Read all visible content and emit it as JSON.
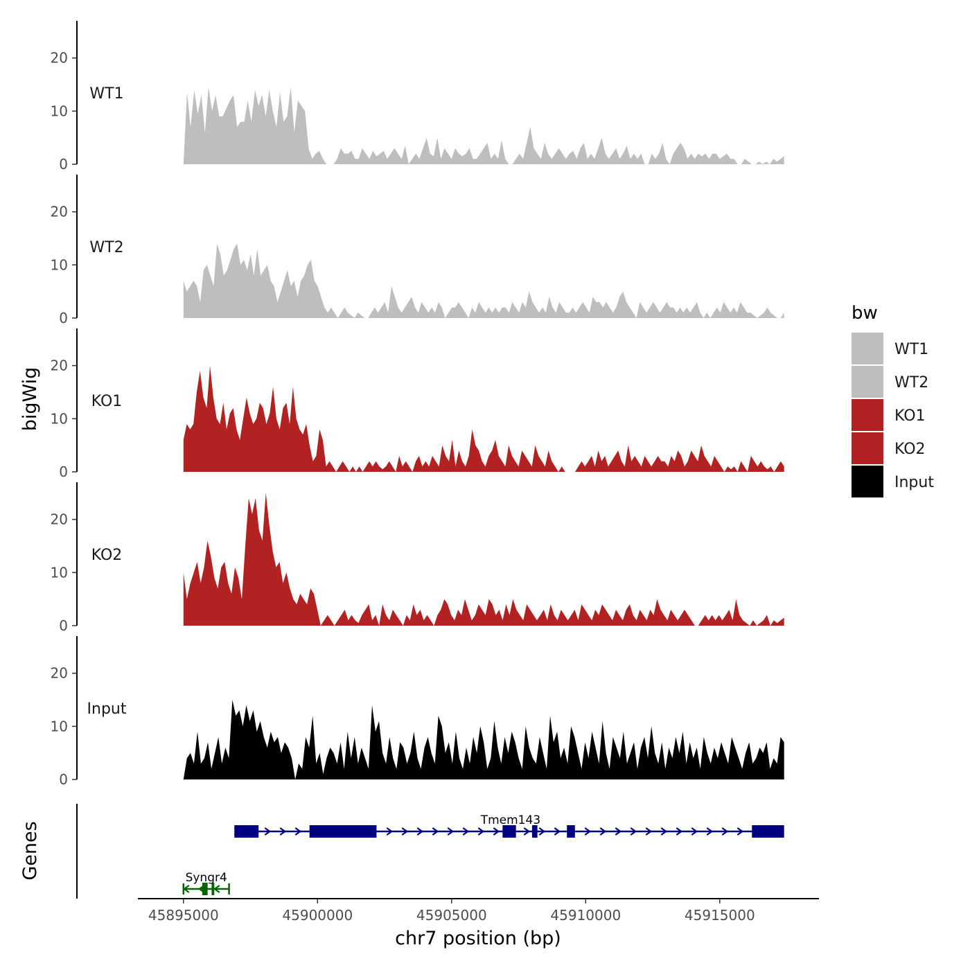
{
  "chart_data": {
    "type": "area",
    "title": "",
    "xlabel": "chr7 position (bp)",
    "ylabel": "bigWig",
    "genes_panel_label": "Genes",
    "xlim": [
      45893300,
      45918700
    ],
    "x_ticks": [
      45895000,
      45900000,
      45905000,
      45910000,
      45915000
    ],
    "x_tick_labels": [
      "45895000",
      "45900000",
      "45905000",
      "45910000",
      "45915000"
    ],
    "ylim": [
      0,
      27
    ],
    "y_ticks": [
      0,
      10,
      20
    ],
    "y_tick_labels": [
      "0",
      "10",
      "20"
    ],
    "data_x_range": [
      45895000,
      45917400
    ],
    "legend": {
      "title": "bw",
      "position": "right",
      "entries": [
        {
          "label": "WT1",
          "color": "#bebebe"
        },
        {
          "label": "WT2",
          "color": "#bebebe"
        },
        {
          "label": "KO1",
          "color": "#b22222"
        },
        {
          "label": "KO2",
          "color": "#b22222"
        },
        {
          "label": "Input",
          "color": "#000000"
        }
      ]
    },
    "series": [
      {
        "name": "WT1",
        "color": "#bebebe",
        "values": [
          0,
          13.5,
          7,
          14,
          9.5,
          13,
          6,
          14.5,
          10,
          13,
          9,
          9,
          10.5,
          12,
          13,
          7,
          8,
          8,
          12,
          8,
          14,
          11,
          13,
          9,
          14,
          10,
          7,
          13.5,
          8,
          9,
          14.5,
          6,
          12,
          11,
          10,
          3,
          1,
          2,
          2.5,
          1,
          0,
          0,
          0,
          1,
          3,
          2,
          2,
          2.5,
          1,
          1,
          3,
          2,
          1,
          2.5,
          1.5,
          2,
          2.5,
          1,
          2,
          3,
          2,
          1,
          3.5,
          0,
          1,
          2,
          1,
          3,
          5,
          2,
          1.5,
          5,
          1,
          3,
          2,
          1,
          3,
          2,
          1.5,
          2,
          3,
          1,
          1,
          2,
          3,
          4,
          1,
          2,
          1,
          4.5,
          1,
          0,
          0,
          1,
          2,
          1,
          4,
          7,
          3,
          2,
          1,
          4,
          2,
          1,
          2,
          3,
          2,
          1,
          2,
          2.5,
          1,
          3,
          4,
          1,
          2,
          1,
          3,
          5,
          2,
          1,
          2,
          3,
          1,
          2,
          3.5,
          1,
          2,
          1,
          2,
          0,
          0,
          2,
          1,
          2,
          4,
          1,
          0,
          2,
          3,
          4,
          3,
          1,
          2,
          1,
          2,
          1.5,
          2,
          1,
          2,
          2,
          1,
          1.5,
          2,
          1,
          1,
          0,
          0,
          1,
          0.5,
          0,
          0,
          0.5,
          0,
          0.5,
          0,
          1,
          0.5,
          1,
          1.5
        ]
      },
      {
        "name": "WT2",
        "color": "#bebebe",
        "values": [
          7,
          5,
          6,
          7,
          6,
          3,
          9,
          10,
          8,
          6,
          14,
          12,
          8,
          9,
          11,
          13,
          14,
          10,
          11,
          9,
          12,
          8,
          13,
          8,
          9,
          10,
          7,
          6,
          3,
          5,
          7,
          9,
          6,
          7,
          4,
          7,
          8,
          10,
          11,
          7,
          6,
          4,
          2,
          1,
          2,
          1,
          0,
          1,
          2,
          1,
          0.5,
          0,
          1,
          0.5,
          0,
          0,
          1,
          2,
          1,
          2,
          3,
          1,
          6,
          4,
          2,
          1,
          2,
          3,
          4,
          2,
          1,
          3,
          2,
          1,
          2,
          1,
          3,
          2,
          0,
          1,
          2,
          2,
          3,
          2,
          1,
          0,
          2,
          1,
          3,
          2,
          1,
          2,
          1,
          2,
          1,
          2,
          2,
          1,
          3,
          2,
          1,
          3,
          2,
          5,
          3,
          2,
          1,
          2,
          1,
          4,
          2,
          1,
          3,
          2,
          1,
          1,
          2,
          1,
          2,
          3,
          2,
          1,
          4,
          3,
          3,
          2,
          3,
          2,
          1,
          2,
          4,
          5,
          3,
          2,
          1,
          0,
          3,
          2,
          1,
          2,
          3,
          2,
          1,
          2,
          3,
          2,
          2,
          1,
          2,
          1,
          2,
          1,
          2,
          3,
          1,
          0,
          1,
          0,
          1,
          2,
          1,
          3,
          2,
          1,
          2,
          1,
          3,
          2,
          1,
          1,
          0.5,
          0,
          0.5,
          1,
          2,
          1,
          0.5,
          0,
          0,
          1
        ]
      },
      {
        "name": "KO1",
        "color": "#b22222",
        "values": [
          6,
          9,
          8,
          9,
          15,
          19,
          14,
          12,
          20,
          14,
          10,
          9,
          13,
          8,
          11,
          12,
          8,
          6,
          10,
          14,
          11,
          9,
          10,
          13,
          12,
          9,
          11,
          16,
          10,
          8,
          12,
          13,
          9,
          16,
          10,
          8,
          7,
          9,
          5,
          2,
          3,
          8,
          6,
          1,
          2,
          1,
          0,
          1,
          2,
          1,
          0,
          1,
          0,
          1,
          0,
          1,
          2,
          1,
          2,
          1,
          0.5,
          1,
          2,
          1,
          0,
          3,
          1,
          2,
          1,
          0,
          2,
          3,
          1,
          2,
          1,
          3,
          2,
          1,
          5,
          3,
          2,
          6,
          1,
          4,
          2,
          1,
          3,
          8,
          5,
          4,
          2,
          1,
          3,
          4,
          6,
          3,
          2,
          1,
          5,
          3,
          2,
          1,
          4,
          3,
          2,
          1,
          5,
          3,
          2,
          1,
          4,
          2,
          1,
          0,
          1,
          0,
          0,
          0,
          0,
          1,
          2,
          1,
          2,
          3,
          1,
          4,
          2,
          3,
          1,
          2,
          3,
          4,
          2,
          1,
          5,
          2,
          3,
          2,
          1,
          3,
          2,
          1,
          2,
          3,
          2,
          2,
          1,
          3,
          2,
          4,
          3,
          1,
          2,
          4,
          3,
          2,
          5,
          3,
          2,
          1,
          3,
          2,
          1,
          0,
          1,
          0.5,
          1,
          0,
          2,
          1,
          0,
          3,
          2,
          1,
          2,
          1,
          0.5,
          1,
          0,
          1,
          2,
          1
        ]
      },
      {
        "name": "KO2",
        "color": "#b22222",
        "values": [
          10,
          5,
          8,
          10,
          12,
          8,
          11,
          16,
          13,
          9,
          7,
          11,
          12,
          8,
          6,
          11,
          9,
          5,
          15,
          24,
          21,
          24,
          18,
          16,
          25,
          19,
          14,
          11,
          12,
          8,
          10,
          7,
          5,
          4,
          6,
          5,
          4,
          7,
          6,
          3,
          0,
          1,
          2,
          1,
          0,
          1,
          2,
          3,
          1,
          2,
          1,
          0.5,
          2,
          3,
          4,
          1,
          2,
          0,
          4,
          2,
          1,
          3,
          2,
          1,
          0,
          2,
          1,
          4,
          2,
          3,
          1,
          2,
          1,
          0,
          2,
          3,
          5,
          4,
          2,
          1,
          3,
          2,
          5,
          3,
          1,
          2,
          4,
          3,
          2,
          5,
          4,
          2,
          3,
          1,
          4,
          2,
          5,
          3,
          2,
          1,
          4,
          3,
          2,
          1,
          2,
          3,
          1,
          4,
          2,
          1,
          3,
          2,
          1,
          2,
          3,
          1,
          4,
          3,
          2,
          1,
          3,
          2,
          4,
          3,
          2,
          1,
          3,
          2,
          1,
          3,
          4,
          2,
          1,
          3,
          2,
          1,
          3,
          2,
          5,
          3,
          2,
          1,
          3,
          2,
          1,
          2,
          3,
          2,
          1,
          0,
          0,
          1,
          2,
          1,
          2,
          1,
          2,
          1,
          2,
          3,
          1,
          5,
          2,
          1,
          0.5,
          0,
          1,
          0,
          0.5,
          1,
          2,
          0,
          1,
          0.5,
          1,
          1.5
        ]
      },
      {
        "name": "Input",
        "color": "#000000",
        "values": [
          0,
          4,
          5,
          3,
          9,
          3,
          4,
          7,
          2,
          5,
          8,
          3,
          6,
          4,
          15,
          12,
          13,
          10,
          14,
          11,
          13,
          9,
          11,
          8,
          6,
          9,
          7,
          8,
          5,
          7,
          6,
          4,
          0,
          3,
          2,
          8,
          6,
          12,
          3,
          5,
          1,
          4,
          6,
          5,
          3,
          7,
          2,
          9,
          4,
          8,
          3,
          6,
          4,
          2,
          14,
          9,
          11,
          5,
          3,
          8,
          4,
          2,
          7,
          6,
          3,
          5,
          9,
          4,
          2,
          6,
          8,
          5,
          3,
          12,
          10,
          5,
          7,
          3,
          9,
          4,
          2,
          6,
          3,
          8,
          5,
          10,
          7,
          2,
          4,
          11,
          6,
          3,
          8,
          5,
          9,
          7,
          4,
          2,
          10,
          6,
          4,
          3,
          8,
          5,
          2,
          12,
          7,
          9,
          4,
          6,
          3,
          10,
          8,
          5,
          2,
          7,
          4,
          9,
          6,
          3,
          11,
          5,
          2,
          8,
          6,
          4,
          9,
          3,
          5,
          7,
          2,
          6,
          8,
          4,
          10,
          5,
          3,
          7,
          2,
          6,
          4,
          8,
          5,
          9,
          3,
          7,
          4,
          6,
          2,
          8,
          5,
          3,
          6,
          4,
          7,
          5,
          3,
          8,
          6,
          4,
          2,
          5,
          7,
          3,
          4,
          6,
          5,
          7,
          2,
          4,
          3,
          8,
          7
        ]
      }
    ],
    "genes": [
      {
        "name": "Tmem143",
        "strand": "+",
        "color": "#000080",
        "start": 45896900,
        "end": 45917400,
        "exons": [
          [
            45896900,
            45897800
          ],
          [
            45899700,
            45902200
          ],
          [
            45906900,
            45907400
          ],
          [
            45908000,
            45908200
          ],
          [
            45909300,
            45909600
          ],
          [
            45916200,
            45916400
          ],
          [
            45916400,
            45917400
          ]
        ]
      },
      {
        "name": "Syngr4",
        "strand": "-",
        "color": "#006400",
        "start": 45895000,
        "end": 45896700,
        "exons": [
          [
            45895700,
            45895900
          ],
          [
            45896050,
            45896150
          ]
        ]
      }
    ]
  }
}
